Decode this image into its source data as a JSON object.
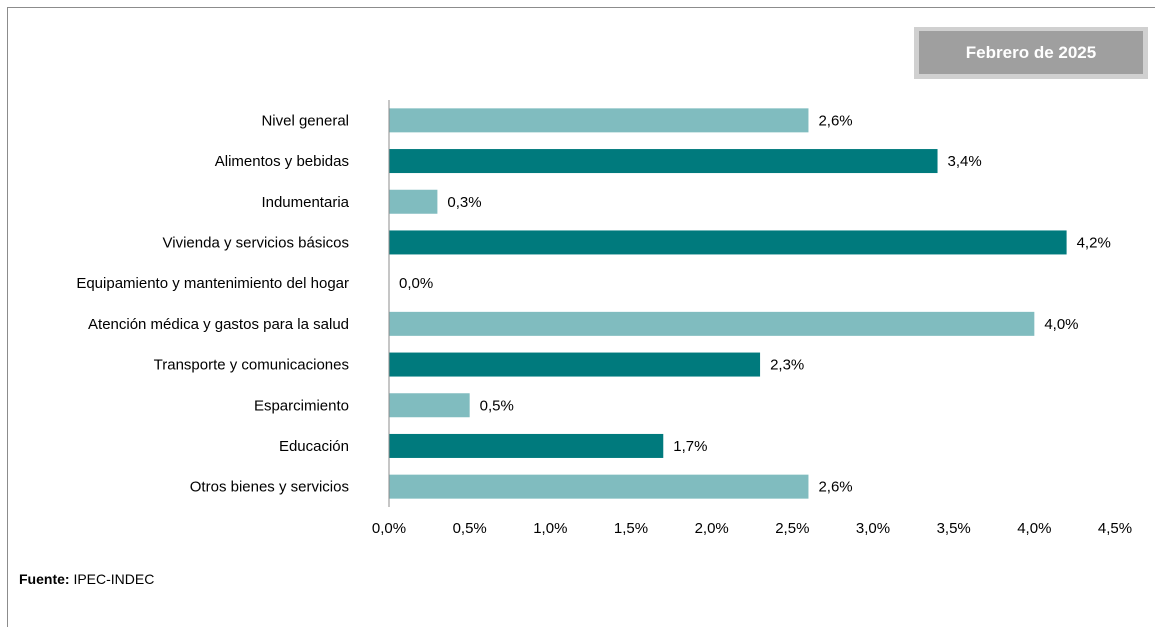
{
  "badge": {
    "label": "Febrero de 2025"
  },
  "source": {
    "prefix": "Fuente:",
    "text": "IPEC-INDEC"
  },
  "colors": {
    "light": "#80bcbf",
    "dark": "#007a7d",
    "axis": "#8c8c8c"
  },
  "chart_data": {
    "type": "bar",
    "orientation": "horizontal",
    "categories": [
      "Nivel general",
      "Alimentos y bebidas",
      "Indumentaria",
      "Vivienda y servicios básicos",
      "Equipamiento y mantenimiento del hogar",
      "Atención médica y gastos para la salud",
      "Transporte y comunicaciones",
      "Esparcimiento",
      "Educación",
      "Otros bienes y servicios"
    ],
    "values": [
      2.6,
      3.4,
      0.3,
      4.2,
      0.0,
      4.0,
      2.3,
      0.5,
      1.7,
      2.6
    ],
    "value_labels": [
      "2,6%",
      "3,4%",
      "0,3%",
      "4,2%",
      "0,0%",
      "4,0%",
      "2,3%",
      "0,5%",
      "1,7%",
      "2,6%"
    ],
    "bar_colors": [
      "light",
      "dark",
      "light",
      "dark",
      "light",
      "light",
      "dark",
      "light",
      "dark",
      "light"
    ],
    "xlim": [
      0,
      4.5
    ],
    "xticks": [
      0,
      0.5,
      1.0,
      1.5,
      2.0,
      2.5,
      3.0,
      3.5,
      4.0,
      4.5
    ],
    "xtick_labels": [
      "0,0%",
      "0,5%",
      "1,0%",
      "1,5%",
      "2,0%",
      "2,5%",
      "3,0%",
      "3,5%",
      "4,0%",
      "4,5%"
    ],
    "title": "",
    "xlabel": "",
    "ylabel": "",
    "grid": false,
    "legend": false
  }
}
